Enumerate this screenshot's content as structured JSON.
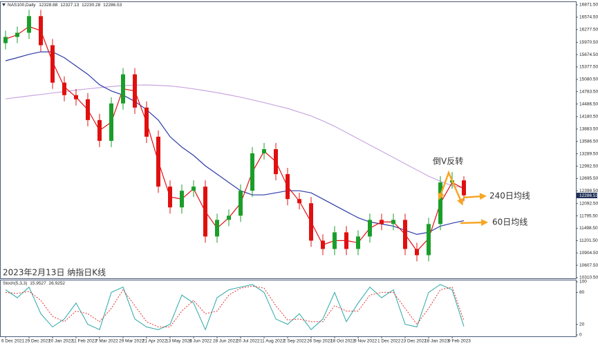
{
  "chart_data": [
    {
      "type": "candlestick",
      "title": "NAS100,Daily",
      "header_values": [
        12328.88,
        12327.13,
        12230.28,
        12286.53
      ],
      "last_price": 12286.53,
      "annotations": [
        "倒V反转",
        "240日均线",
        "60日均线",
        "2023年2月13日 纳指日K线"
      ],
      "categories": [
        "6 Dec 2021",
        null,
        "29 Dec 2021",
        null,
        "20 Jan 2022",
        null,
        "11 Feb 2022",
        null,
        "7 Mar 2022",
        null,
        "29 Mar 2022",
        null,
        "21 Apr 2022",
        null,
        "13 May 2022",
        null,
        "6 Jun 2022",
        null,
        "28 Jun 2022",
        null,
        "20 Jul 2022",
        null,
        "11 Aug 2022",
        null,
        "2 Sep 2022",
        null,
        "26 Sep 2022",
        null,
        "18 Oct 2022",
        null,
        "9 Nov 2022",
        null,
        "1 Dec 2022",
        null,
        "23 Dec 2022",
        null,
        "18 Jan 2023",
        null,
        "9 Feb 2023",
        null
      ],
      "open": [
        15950,
        16100,
        16200,
        16600,
        15900,
        15000,
        14700,
        14600,
        14100,
        13600,
        14500,
        15200,
        14400,
        13700,
        12500,
        12000,
        12400,
        12500,
        11300,
        11700,
        11800,
        12400,
        13300,
        13400,
        12800,
        12200,
        12100,
        11200,
        11000,
        11400,
        11000,
        11300,
        11700,
        11600,
        11700,
        11000,
        10850,
        11600,
        12600,
        12650
      ],
      "high": [
        16250,
        16350,
        16750,
        16750,
        16050,
        15150,
        14850,
        14750,
        14250,
        14650,
        15350,
        15350,
        14550,
        13850,
        12650,
        12550,
        12650,
        12650,
        11850,
        11950,
        12550,
        13450,
        13550,
        13550,
        12950,
        12350,
        12250,
        11350,
        11550,
        11550,
        11450,
        11850,
        11850,
        11850,
        11850,
        11150,
        11750,
        12750,
        12850,
        12750
      ],
      "low": [
        15800,
        15950,
        16050,
        15750,
        14850,
        14550,
        14450,
        13950,
        13450,
        13450,
        14350,
        14250,
        13550,
        12350,
        11850,
        11850,
        12250,
        11150,
        11150,
        11550,
        11650,
        12250,
        13150,
        12650,
        12050,
        11950,
        11050,
        10850,
        10850,
        10850,
        10850,
        11150,
        11450,
        11450,
        10850,
        10700,
        10700,
        11450,
        12450,
        12150
      ],
      "close": [
        16100,
        16200,
        16600,
        15900,
        15000,
        14700,
        14600,
        14100,
        13600,
        14500,
        15200,
        14400,
        13700,
        12500,
        12000,
        12400,
        12500,
        11300,
        11700,
        11800,
        12400,
        13300,
        13400,
        12800,
        12200,
        12100,
        11200,
        11000,
        11400,
        11000,
        11300,
        11700,
        11600,
        11700,
        11000,
        10850,
        11600,
        12600,
        12650,
        12290
      ],
      "up_color": "#1a9e2a",
      "down_color": "#e01010",
      "lines": [
        {
          "color": "#c9a6e0",
          "values": [
            14610,
            14645,
            14680,
            14715,
            14750,
            14785,
            14820,
            14850,
            14880,
            14905,
            14930,
            14940,
            14945,
            14935,
            14920,
            14890,
            14850,
            14805,
            14760,
            14705,
            14650,
            14585,
            14520,
            14450,
            14380,
            14290,
            14200,
            14080,
            13950,
            13800,
            13650,
            13500,
            13350,
            13200,
            13050,
            12900,
            12750,
            12630,
            12520,
            12470
          ]
        },
        {
          "color": "#2b3aa8",
          "values": [
            15526,
            15600,
            15680,
            15740,
            15740,
            15600,
            15400,
            15200,
            14950,
            14800,
            14700,
            14550,
            14350,
            14100,
            13700,
            13450,
            13250,
            13000,
            12800,
            12600,
            12400,
            12300,
            12300,
            12350,
            12400,
            12400,
            12350,
            12200,
            12050,
            11900,
            11750,
            11650,
            11600,
            11550,
            11450,
            11350,
            11400,
            11550,
            11620,
            11680
          ]
        },
        {
          "color": "#e01010",
          "values": [
            16050,
            16150,
            16350,
            16250,
            15500,
            14900,
            14650,
            14350,
            13850,
            14050,
            14850,
            14800,
            14050,
            13100,
            12250,
            12200,
            12450,
            11900,
            11500,
            11750,
            12100,
            12850,
            13350,
            13100,
            12500,
            12150,
            11650,
            11100,
            11200,
            11200,
            11150,
            11500,
            11650,
            11650,
            11350,
            10950,
            11250,
            12100,
            12600,
            12450
          ]
        }
      ],
      "ylim": [
        10310.5,
        16871.5
      ],
      "yticks": [
        {
          "value": 16871.5,
          "label": "16871.50"
        },
        {
          "value": 16574.5,
          "label": "16574.50"
        },
        {
          "value": 16277.5,
          "label": "16277.50"
        },
        {
          "value": 15970.5,
          "label": "15970.50"
        },
        {
          "value": 15674.5,
          "label": "15674.50"
        },
        {
          "value": 15377.5,
          "label": "15377.50"
        },
        {
          "value": 15080.5,
          "label": "15080.50"
        },
        {
          "value": 14783.5,
          "label": "14783.50"
        },
        {
          "value": 14486.5,
          "label": "14486.50"
        },
        {
          "value": 14180.5,
          "label": "14180.50"
        },
        {
          "value": 13883.5,
          "label": "13883.50"
        },
        {
          "value": 13586.5,
          "label": "13586.50"
        },
        {
          "value": 13289.5,
          "label": "13289.50"
        },
        {
          "value": 12992.5,
          "label": "12992.50"
        },
        {
          "value": 12695.5,
          "label": "12695.50"
        },
        {
          "value": 12398.5,
          "label": "12398.50"
        },
        {
          "value": 12092.5,
          "label": "12092.50"
        },
        {
          "value": 11795.5,
          "label": "11795.50"
        },
        {
          "value": 11498.5,
          "label": "11498.50"
        },
        {
          "value": 11201.5,
          "label": "11201.50"
        },
        {
          "value": 10904.5,
          "label": "10904.50"
        },
        {
          "value": 10607.5,
          "label": "10607.50"
        },
        {
          "value": 10310.5,
          "label": "10310.50"
        }
      ]
    },
    {
      "type": "line",
      "title": "Stoch(5,3,3)",
      "header_values": [
        15.9527,
        26.9252
      ],
      "series": [
        {
          "color": "#2aa6a6",
          "style": "solid",
          "values": [
            85,
            70,
            90,
            40,
            15,
            30,
            60,
            20,
            10,
            80,
            90,
            30,
            15,
            10,
            20,
            75,
            60,
            10,
            70,
            85,
            90,
            95,
            80,
            30,
            20,
            40,
            10,
            30,
            80,
            25,
            60,
            90,
            70,
            85,
            20,
            15,
            80,
            95,
            85,
            15.9527
          ]
        },
        {
          "color": "#e03030",
          "style": "dashed",
          "values": [
            80,
            78,
            82,
            65,
            35,
            25,
            45,
            40,
            25,
            50,
            85,
            55,
            25,
            15,
            15,
            45,
            65,
            40,
            45,
            75,
            88,
            92,
            88,
            55,
            28,
            30,
            25,
            25,
            55,
            45,
            45,
            75,
            80,
            80,
            50,
            20,
            50,
            85,
            90,
            26.9252
          ]
        }
      ],
      "ylim": [
        0,
        100
      ],
      "yticks": [
        100,
        80,
        20,
        0
      ]
    }
  ]
}
